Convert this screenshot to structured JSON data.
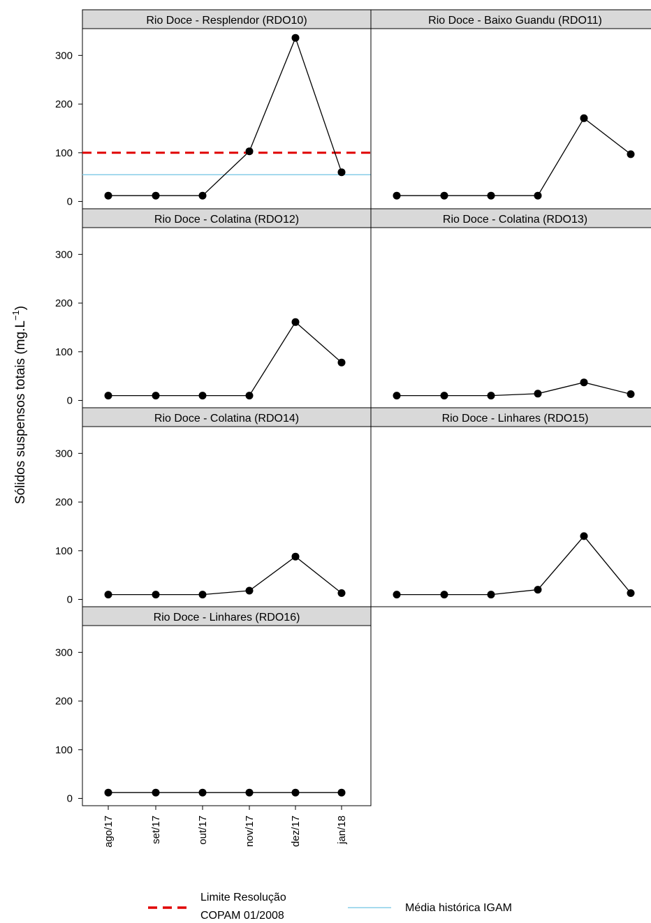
{
  "chart_data": {
    "type": "line",
    "ylabel": "Sólidos suspensos totais (mg.L",
    "ylabel_sup": "−1",
    "ylabel_close": ")",
    "categories": [
      "ago/17",
      "set/17",
      "out/17",
      "nov/17",
      "dez/17",
      "jan/18"
    ],
    "ylim": [
      -15,
      355
    ],
    "yticks": [
      0,
      100,
      200,
      300
    ],
    "grid": false,
    "panels": [
      {
        "title": "Rio Doce - Resplendor (RDO10)",
        "values": [
          12,
          12,
          12,
          103,
          336,
          60
        ],
        "show_reference_lines": true
      },
      {
        "title": "Rio Doce - Baixo Guandu (RDO11)",
        "values": [
          12,
          12,
          12,
          12,
          171,
          97
        ],
        "show_reference_lines": false
      },
      {
        "title": "Rio Doce - Colatina (RDO12)",
        "values": [
          10,
          10,
          10,
          10,
          161,
          78
        ],
        "show_reference_lines": false
      },
      {
        "title": "Rio Doce - Colatina (RDO13)",
        "values": [
          10,
          10,
          10,
          14,
          37,
          13
        ],
        "show_reference_lines": false
      },
      {
        "title": "Rio Doce - Colatina (RDO14)",
        "values": [
          10,
          10,
          10,
          18,
          88,
          13
        ],
        "show_reference_lines": false
      },
      {
        "title": "Rio Doce - Linhares (RDO15)",
        "values": [
          10,
          10,
          10,
          20,
          130,
          13
        ],
        "show_reference_lines": false
      },
      {
        "title": "Rio Doce - Linhares (RDO16)",
        "values": [
          12,
          12,
          12,
          12,
          12,
          12
        ],
        "show_reference_lines": false
      }
    ],
    "reference_lines": [
      {
        "name_line1": "Limite Resolução",
        "name_line2": "COPAM 01/2008",
        "value": 100,
        "color": "#e00000",
        "style": "dashed"
      },
      {
        "name": "Média histórica IGAM",
        "value": 55,
        "color": "#87cde8",
        "style": "solid"
      }
    ],
    "legend_position": "bottom",
    "colors": {
      "series": "#000000",
      "strip_fill": "#d9d9d9"
    }
  }
}
